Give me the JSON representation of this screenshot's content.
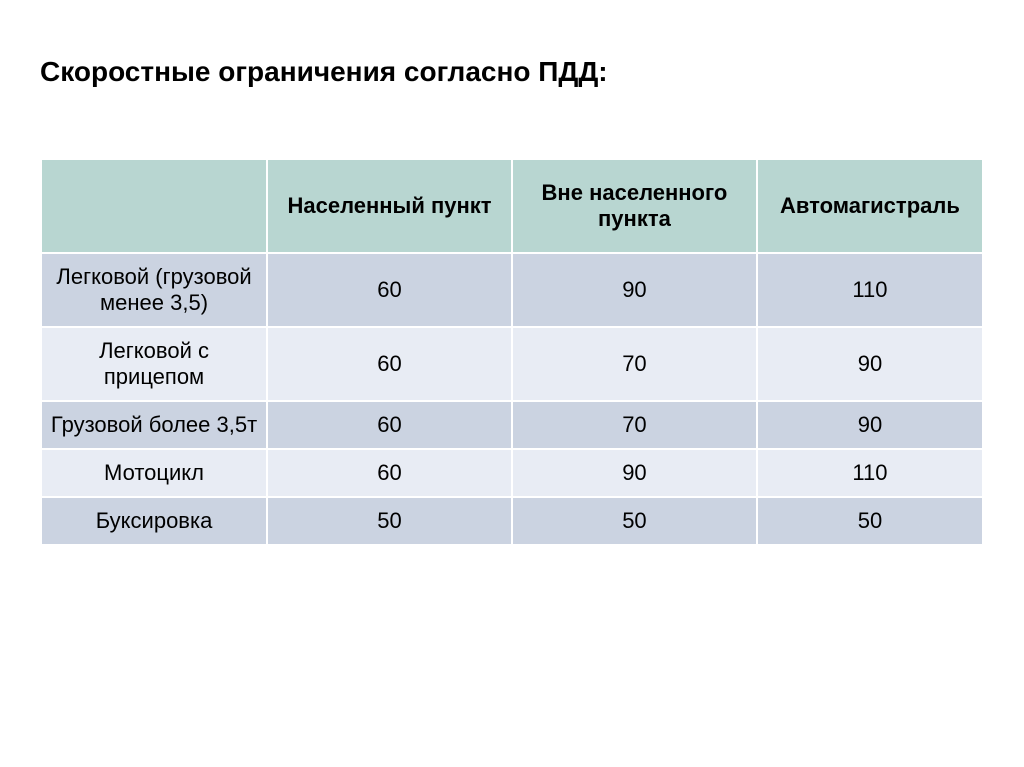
{
  "title": "Скоростные ограничения согласно ПДД:",
  "table": {
    "type": "table",
    "header_background": "#b8d6d1",
    "row_odd_background": "#cbd3e1",
    "row_even_background": "#e8ecf4",
    "border_color": "#ffffff",
    "text_color": "#000000",
    "title_fontsize": 28,
    "cell_fontsize": 22,
    "columns": [
      {
        "label": "",
        "width_pct": 24
      },
      {
        "label": "Населенный пункт",
        "width_pct": 26
      },
      {
        "label": "Вне населенного пункта",
        "width_pct": 26
      },
      {
        "label": "Автомагистраль",
        "width_pct": 24
      }
    ],
    "rows": [
      {
        "label": "Легковой (грузовой менее 3,5)",
        "values": [
          "60",
          "90",
          "110"
        ]
      },
      {
        "label": "Легковой с прицепом",
        "values": [
          "60",
          "70",
          "90"
        ]
      },
      {
        "label": "Грузовой более 3,5т",
        "values": [
          "60",
          "70",
          "90"
        ]
      },
      {
        "label": "Мотоцикл",
        "values": [
          "60",
          "90",
          "110"
        ]
      },
      {
        "label": "Буксировка",
        "values": [
          "50",
          "50",
          "50"
        ]
      }
    ]
  }
}
